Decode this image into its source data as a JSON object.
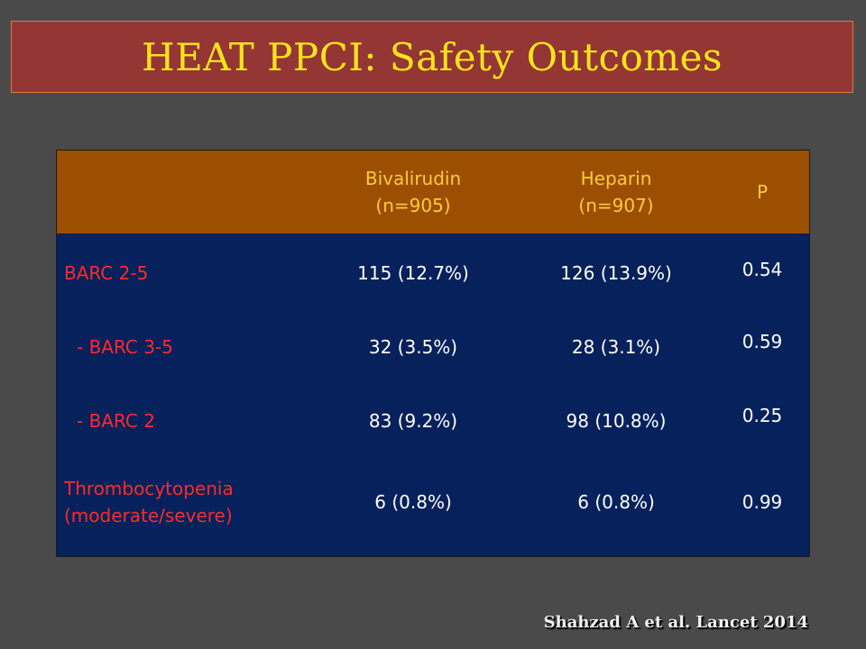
{
  "title": "HEAT PPCI: Safety Outcomes",
  "table": {
    "header": {
      "col_bival": [
        "Bivalirudin",
        "(n=905)"
      ],
      "col_heparin": [
        "Heparin",
        "(n=907)"
      ],
      "col_p": "P"
    },
    "rows": [
      {
        "label": [
          "BARC 2-5"
        ],
        "bival": "115 (12.7%)",
        "heparin": "126 (13.9%)",
        "p": "0.54"
      },
      {
        "label": [
          "- BARC 3-5"
        ],
        "bival": "32 (3.5%)",
        "heparin": "28 (3.1%)",
        "p": "0.59"
      },
      {
        "label": [
          "- BARC 2"
        ],
        "bival": "83 (9.2%)",
        "heparin": "98 (10.8%)",
        "p": "0.25"
      },
      {
        "label": [
          "Thrombocytopenia",
          "(moderate/severe)"
        ],
        "bival": "6 (0.8%)",
        "heparin": "6 (0.8%)",
        "p": "0.99"
      }
    ]
  },
  "citation": "Shahzad A et al. Lancet 2014",
  "colors": {
    "background": "#4a4a4a",
    "title_banner": "#943634",
    "title_text": "#ffe31a",
    "header_fill": "#9c4f00",
    "header_text": "#ffcc33",
    "body_fill": "#06215c",
    "label_text": "#ff2a2a",
    "value_text": "#ffffff"
  }
}
